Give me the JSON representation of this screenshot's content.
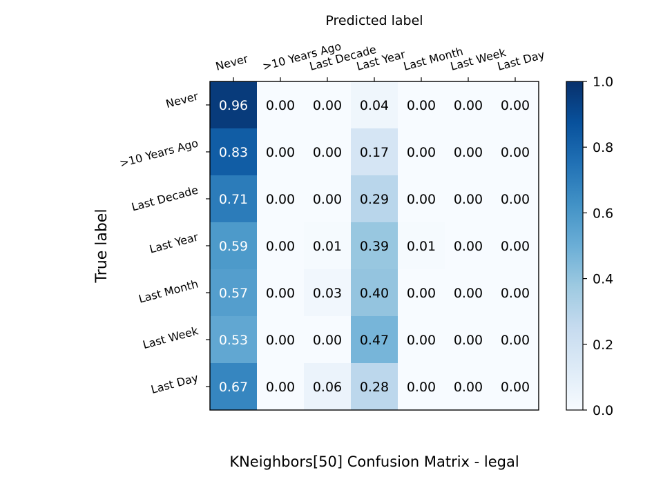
{
  "chart_data": {
    "type": "heatmap",
    "title": "KNeighbors[50]  Confusion Matrix - legal",
    "xlabel": "Predicted label",
    "ylabel": "True label",
    "x_categories": [
      "Never",
      ">10 Years Ago",
      "Last Decade",
      "Last Year",
      "Last Month",
      "Last Week",
      "Last Day"
    ],
    "y_categories": [
      "Never",
      ">10 Years Ago",
      "Last Decade",
      "Last Year",
      "Last Month",
      "Last Week",
      "Last Day"
    ],
    "values": [
      [
        0.96,
        0.0,
        0.0,
        0.04,
        0.0,
        0.0,
        0.0
      ],
      [
        0.83,
        0.0,
        0.0,
        0.17,
        0.0,
        0.0,
        0.0
      ],
      [
        0.71,
        0.0,
        0.0,
        0.29,
        0.0,
        0.0,
        0.0
      ],
      [
        0.59,
        0.0,
        0.01,
        0.39,
        0.01,
        0.0,
        0.0
      ],
      [
        0.57,
        0.0,
        0.03,
        0.4,
        0.0,
        0.0,
        0.0
      ],
      [
        0.53,
        0.0,
        0.0,
        0.47,
        0.0,
        0.0,
        0.0
      ],
      [
        0.67,
        0.0,
        0.06,
        0.28,
        0.0,
        0.0,
        0.0
      ]
    ],
    "colormap": "Blues",
    "vmin": 0.0,
    "vmax": 1.0,
    "colorbar_ticks": [
      "0.0",
      "0.2",
      "0.4",
      "0.6",
      "0.8",
      "1.0"
    ],
    "grid": false
  }
}
